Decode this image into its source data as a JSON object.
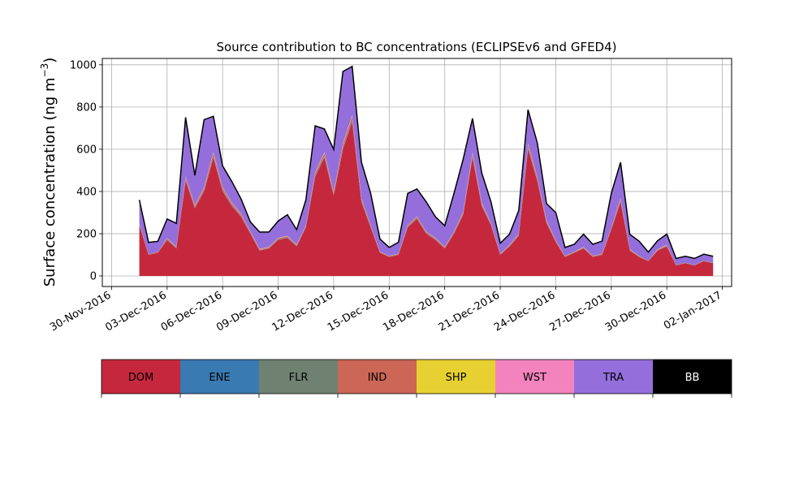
{
  "chart_data": {
    "type": "area",
    "stacked": true,
    "title": "Source contribution to BC concentrations (ECLIPSEv6 and GFED4)",
    "ylabel": "Surface concentration (ng m",
    "ylabel_unit_sup": "−3",
    "ylabel_close": ")",
    "ylim": [
      -50,
      1030
    ],
    "xlim": [
      "2016-11-29T12:00",
      "2017-01-02T12:00"
    ],
    "yticks": [
      0,
      200,
      400,
      600,
      800,
      1000
    ],
    "xticks": [
      "30-Nov-2016",
      "03-Dec-2016",
      "06-Dec-2016",
      "09-Dec-2016",
      "12-Dec-2016",
      "15-Dec-2016",
      "18-Dec-2016",
      "21-Dec-2016",
      "24-Dec-2016",
      "27-Dec-2016",
      "30-Dec-2016",
      "02-Jan-2017"
    ],
    "grid": true,
    "legend_placement": "below",
    "x": [
      "2016-12-01T12:00",
      "2016-12-02T00:00",
      "2016-12-02T12:00",
      "2016-12-03T00:00",
      "2016-12-03T12:00",
      "2016-12-04T00:00",
      "2016-12-04T12:00",
      "2016-12-05T00:00",
      "2016-12-05T12:00",
      "2016-12-06T00:00",
      "2016-12-06T12:00",
      "2016-12-07T00:00",
      "2016-12-07T12:00",
      "2016-12-08T00:00",
      "2016-12-08T12:00",
      "2016-12-09T00:00",
      "2016-12-09T12:00",
      "2016-12-10T00:00",
      "2016-12-10T12:00",
      "2016-12-11T00:00",
      "2016-12-11T12:00",
      "2016-12-12T00:00",
      "2016-12-12T12:00",
      "2016-12-13T00:00",
      "2016-12-13T12:00",
      "2016-12-14T00:00",
      "2016-12-14T12:00",
      "2016-12-15T00:00",
      "2016-12-15T12:00",
      "2016-12-16T00:00",
      "2016-12-16T12:00",
      "2016-12-17T00:00",
      "2016-12-17T12:00",
      "2016-12-18T00:00",
      "2016-12-18T12:00",
      "2016-12-19T00:00",
      "2016-12-19T12:00",
      "2016-12-20T00:00",
      "2016-12-20T12:00",
      "2016-12-21T00:00",
      "2016-12-21T12:00",
      "2016-12-22T00:00",
      "2016-12-22T12:00",
      "2016-12-23T00:00",
      "2016-12-23T12:00",
      "2016-12-24T00:00",
      "2016-12-24T12:00",
      "2016-12-25T00:00",
      "2016-12-25T12:00",
      "2016-12-26T00:00",
      "2016-12-26T12:00",
      "2016-12-27T00:00",
      "2016-12-27T12:00",
      "2016-12-28T00:00",
      "2016-12-28T12:00",
      "2016-12-29T00:00",
      "2016-12-29T12:00",
      "2016-12-30T00:00",
      "2016-12-30T12:00",
      "2016-12-31T00:00",
      "2016-12-31T12:00",
      "2017-01-01T00:00",
      "2017-01-01T12:00"
    ],
    "series": [
      {
        "name": "DOM",
        "color": "#c5283d",
        "values": [
          240,
          100,
          110,
          170,
          130,
          450,
          320,
          400,
          560,
          400,
          330,
          280,
          200,
          120,
          130,
          170,
          180,
          140,
          230,
          470,
          560,
          380,
          600,
          730,
          350,
          230,
          110,
          90,
          100,
          230,
          270,
          200,
          170,
          130,
          200,
          290,
          560,
          330,
          240,
          100,
          140,
          190,
          600,
          450,
          250,
          160,
          90,
          110,
          130,
          90,
          100,
          220,
          350,
          120,
          90,
          70,
          120,
          140,
          50,
          60,
          50,
          70,
          60
        ]
      },
      {
        "name": "ENE",
        "color": "#3a7ab3",
        "values": [
          2,
          1,
          1,
          2,
          2,
          3,
          3,
          3,
          4,
          3,
          3,
          2,
          2,
          1,
          1,
          2,
          2,
          2,
          2,
          3,
          4,
          3,
          4,
          5,
          3,
          2,
          1,
          1,
          1,
          2,
          2,
          2,
          2,
          1,
          2,
          2,
          4,
          3,
          2,
          1,
          1,
          2,
          4,
          3,
          2,
          2,
          1,
          1,
          1,
          1,
          1,
          2,
          3,
          1,
          1,
          1,
          1,
          1,
          1,
          1,
          1,
          1,
          1
        ]
      },
      {
        "name": "FLR",
        "color": "#6f8272",
        "values": [
          1,
          0,
          0,
          1,
          1,
          2,
          1,
          2,
          2,
          2,
          1,
          1,
          1,
          1,
          1,
          1,
          1,
          1,
          1,
          2,
          2,
          2,
          3,
          3,
          2,
          1,
          0,
          0,
          0,
          1,
          1,
          1,
          1,
          1,
          1,
          1,
          2,
          2,
          1,
          0,
          1,
          1,
          3,
          2,
          1,
          1,
          0,
          0,
          1,
          0,
          0,
          1,
          2,
          1,
          0,
          0,
          1,
          1,
          0,
          0,
          0,
          0,
          0
        ]
      },
      {
        "name": "IND",
        "color": "#cc6656",
        "values": [
          5,
          3,
          3,
          5,
          4,
          12,
          9,
          11,
          15,
          12,
          10,
          8,
          6,
          4,
          4,
          5,
          5,
          4,
          6,
          12,
          15,
          10,
          16,
          18,
          10,
          6,
          3,
          3,
          3,
          6,
          7,
          6,
          5,
          4,
          6,
          8,
          15,
          9,
          6,
          3,
          4,
          5,
          15,
          12,
          7,
          5,
          3,
          3,
          4,
          3,
          3,
          6,
          9,
          3,
          3,
          2,
          3,
          4,
          2,
          2,
          2,
          2,
          2
        ]
      },
      {
        "name": "SHP",
        "color": "#e7d031",
        "values": [
          1,
          0,
          0,
          1,
          1,
          2,
          2,
          2,
          3,
          2,
          2,
          2,
          1,
          1,
          1,
          1,
          1,
          1,
          1,
          2,
          3,
          2,
          3,
          3,
          2,
          1,
          1,
          1,
          1,
          1,
          1,
          1,
          1,
          1,
          1,
          2,
          3,
          2,
          1,
          1,
          1,
          1,
          3,
          2,
          2,
          1,
          1,
          1,
          1,
          1,
          1,
          1,
          2,
          1,
          1,
          0,
          1,
          1,
          0,
          0,
          0,
          0,
          0
        ]
      },
      {
        "name": "WST",
        "color": "#f283bd",
        "values": [
          1,
          0,
          0,
          1,
          1,
          2,
          1,
          2,
          2,
          2,
          1,
          1,
          1,
          1,
          1,
          1,
          1,
          1,
          1,
          2,
          2,
          2,
          2,
          3,
          2,
          1,
          0,
          0,
          0,
          1,
          1,
          1,
          1,
          1,
          1,
          1,
          2,
          2,
          1,
          0,
          1,
          1,
          2,
          2,
          1,
          1,
          0,
          0,
          1,
          0,
          0,
          1,
          2,
          1,
          0,
          0,
          1,
          1,
          0,
          0,
          0,
          0,
          0
        ]
      },
      {
        "name": "TRA",
        "color": "#946fdc",
        "values": [
          110,
          55,
          50,
          90,
          110,
          280,
          140,
          320,
          170,
          100,
          100,
          70,
          45,
          80,
          70,
          80,
          100,
          70,
          120,
          220,
          110,
          200,
          340,
          230,
          170,
          150,
          60,
          40,
          55,
          150,
          130,
          140,
          100,
          100,
          180,
          250,
          160,
          140,
          100,
          50,
          50,
          110,
          160,
          160,
          80,
          130,
          40,
          35,
          60,
          55,
          60,
          160,
          170,
          70,
          70,
          40,
          40,
          50,
          30,
          30,
          30,
          30,
          30
        ]
      },
      {
        "name": "BB",
        "color": "#000000",
        "values": [
          0,
          0,
          0,
          0,
          0,
          0,
          0,
          0,
          0,
          0,
          0,
          0,
          0,
          0,
          0,
          0,
          0,
          0,
          0,
          0,
          0,
          0,
          0,
          0,
          0,
          0,
          0,
          0,
          0,
          0,
          0,
          0,
          0,
          0,
          0,
          0,
          0,
          0,
          0,
          0,
          0,
          0,
          0,
          0,
          0,
          0,
          0,
          0,
          0,
          0,
          0,
          0,
          0,
          0,
          0,
          0,
          0,
          0,
          0,
          0,
          0,
          0,
          0
        ]
      }
    ]
  }
}
